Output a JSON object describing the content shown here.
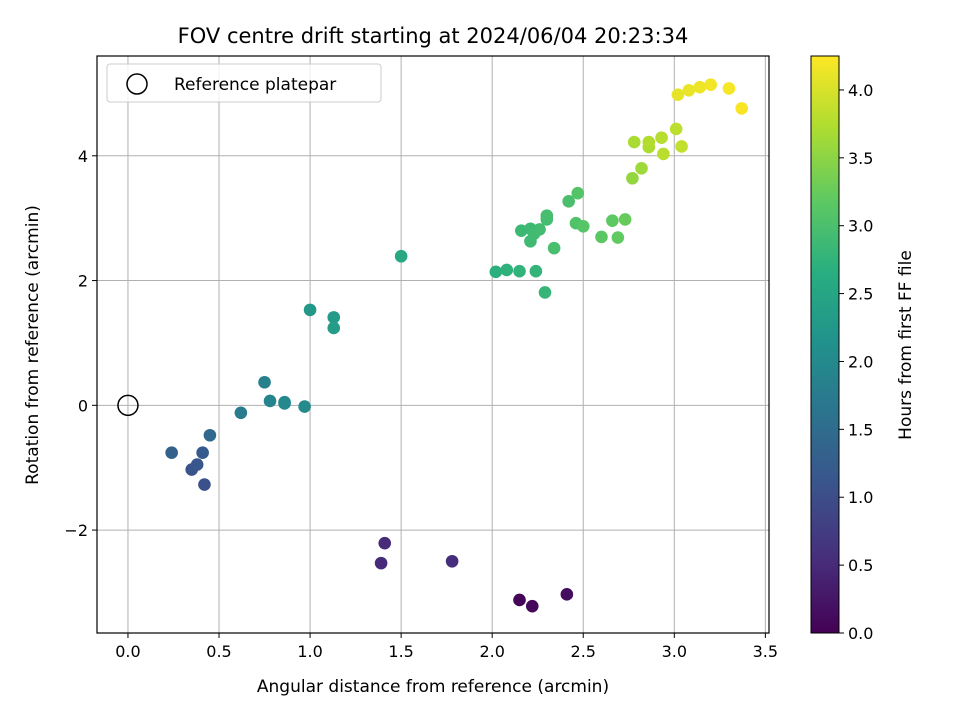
{
  "chart_data": {
    "type": "scatter",
    "title": "FOV centre drift starting at 2024/06/04 20:23:34",
    "xlabel": "Angular distance from reference (arcmin)",
    "ylabel": "Rotation from reference (arcmin)",
    "xlim": [
      -0.17,
      3.52
    ],
    "ylim": [
      -3.65,
      5.6
    ],
    "xticks": [
      0.0,
      0.5,
      1.0,
      1.5,
      2.0,
      2.5,
      3.0,
      3.5
    ],
    "xtick_labels": [
      "0.0",
      "0.5",
      "1.0",
      "1.5",
      "2.0",
      "2.5",
      "3.0",
      "3.5"
    ],
    "yticks": [
      -2,
      0,
      2,
      4
    ],
    "ytick_labels": [
      "−2",
      "0",
      "2",
      "4"
    ],
    "grid": true,
    "legend": {
      "position": "top-left",
      "entries": [
        {
          "label": "Reference platepar",
          "marker": "open-circle"
        }
      ]
    },
    "reference_point": {
      "x": 0.0,
      "y": 0.0
    },
    "colorbar": {
      "label": "Hours from first FF file",
      "min": 0.0,
      "max": 4.25,
      "ticks": [
        0.0,
        0.5,
        1.0,
        1.5,
        2.0,
        2.5,
        3.0,
        3.5,
        4.0
      ],
      "tick_labels": [
        "0.0",
        "0.5",
        "1.0",
        "1.5",
        "2.0",
        "2.5",
        "3.0",
        "3.5",
        "4.0"
      ],
      "colormap": "viridis"
    },
    "points": [
      {
        "x": 2.15,
        "y": -3.12,
        "c": 0.05
      },
      {
        "x": 2.22,
        "y": -3.22,
        "c": 0.1
      },
      {
        "x": 2.41,
        "y": -3.03,
        "c": 0.15
      },
      {
        "x": 1.39,
        "y": -2.53,
        "c": 0.5
      },
      {
        "x": 1.41,
        "y": -2.21,
        "c": 0.52
      },
      {
        "x": 1.78,
        "y": -2.5,
        "c": 0.55
      },
      {
        "x": 0.42,
        "y": -1.27,
        "c": 1.05
      },
      {
        "x": 0.35,
        "y": -1.03,
        "c": 1.1
      },
      {
        "x": 0.38,
        "y": -0.95,
        "c": 1.15
      },
      {
        "x": 0.41,
        "y": -0.76,
        "c": 1.2
      },
      {
        "x": 0.24,
        "y": -0.76,
        "c": 1.3
      },
      {
        "x": 0.45,
        "y": -0.48,
        "c": 1.45
      },
      {
        "x": 0.62,
        "y": -0.12,
        "c": 1.75
      },
      {
        "x": 0.75,
        "y": 0.37,
        "c": 1.85
      },
      {
        "x": 0.78,
        "y": 0.07,
        "c": 1.9
      },
      {
        "x": 0.86,
        "y": 0.05,
        "c": 1.95
      },
      {
        "x": 0.86,
        "y": 0.03,
        "c": 1.97
      },
      {
        "x": 0.97,
        "y": -0.02,
        "c": 2.0
      },
      {
        "x": 1.0,
        "y": 1.53,
        "c": 2.25
      },
      {
        "x": 1.13,
        "y": 1.41,
        "c": 2.3
      },
      {
        "x": 1.13,
        "y": 1.24,
        "c": 2.32
      },
      {
        "x": 1.5,
        "y": 2.39,
        "c": 2.55
      },
      {
        "x": 2.02,
        "y": 2.14,
        "c": 2.7
      },
      {
        "x": 2.08,
        "y": 2.17,
        "c": 2.72
      },
      {
        "x": 2.15,
        "y": 2.15,
        "c": 2.75
      },
      {
        "x": 2.24,
        "y": 2.15,
        "c": 2.78
      },
      {
        "x": 2.29,
        "y": 1.81,
        "c": 2.8
      },
      {
        "x": 2.16,
        "y": 2.8,
        "c": 2.85
      },
      {
        "x": 2.21,
        "y": 2.83,
        "c": 2.87
      },
      {
        "x": 2.21,
        "y": 2.63,
        "c": 2.88
      },
      {
        "x": 2.23,
        "y": 2.75,
        "c": 2.9
      },
      {
        "x": 2.26,
        "y": 2.82,
        "c": 2.92
      },
      {
        "x": 2.3,
        "y": 2.98,
        "c": 2.93
      },
      {
        "x": 2.3,
        "y": 3.04,
        "c": 2.95
      },
      {
        "x": 2.34,
        "y": 2.52,
        "c": 2.97
      },
      {
        "x": 2.42,
        "y": 3.27,
        "c": 3.0
      },
      {
        "x": 2.46,
        "y": 2.92,
        "c": 3.05
      },
      {
        "x": 2.47,
        "y": 3.4,
        "c": 3.08
      },
      {
        "x": 2.5,
        "y": 2.87,
        "c": 3.1
      },
      {
        "x": 2.6,
        "y": 2.7,
        "c": 3.15
      },
      {
        "x": 2.66,
        "y": 2.96,
        "c": 3.18
      },
      {
        "x": 2.69,
        "y": 2.69,
        "c": 3.2
      },
      {
        "x": 2.73,
        "y": 2.98,
        "c": 3.25
      },
      {
        "x": 2.77,
        "y": 3.64,
        "c": 3.55
      },
      {
        "x": 2.82,
        "y": 3.8,
        "c": 3.62
      },
      {
        "x": 2.78,
        "y": 4.22,
        "c": 3.7
      },
      {
        "x": 2.86,
        "y": 4.14,
        "c": 3.72
      },
      {
        "x": 2.86,
        "y": 4.22,
        "c": 3.75
      },
      {
        "x": 2.93,
        "y": 4.29,
        "c": 3.78
      },
      {
        "x": 2.94,
        "y": 4.03,
        "c": 3.8
      },
      {
        "x": 3.01,
        "y": 4.43,
        "c": 3.82
      },
      {
        "x": 3.04,
        "y": 4.15,
        "c": 3.85
      },
      {
        "x": 3.02,
        "y": 4.98,
        "c": 4.1
      },
      {
        "x": 3.08,
        "y": 5.05,
        "c": 4.12
      },
      {
        "x": 3.14,
        "y": 5.1,
        "c": 4.15
      },
      {
        "x": 3.2,
        "y": 5.14,
        "c": 4.18
      },
      {
        "x": 3.3,
        "y": 5.08,
        "c": 4.2
      },
      {
        "x": 3.37,
        "y": 4.76,
        "c": 4.22
      }
    ]
  }
}
